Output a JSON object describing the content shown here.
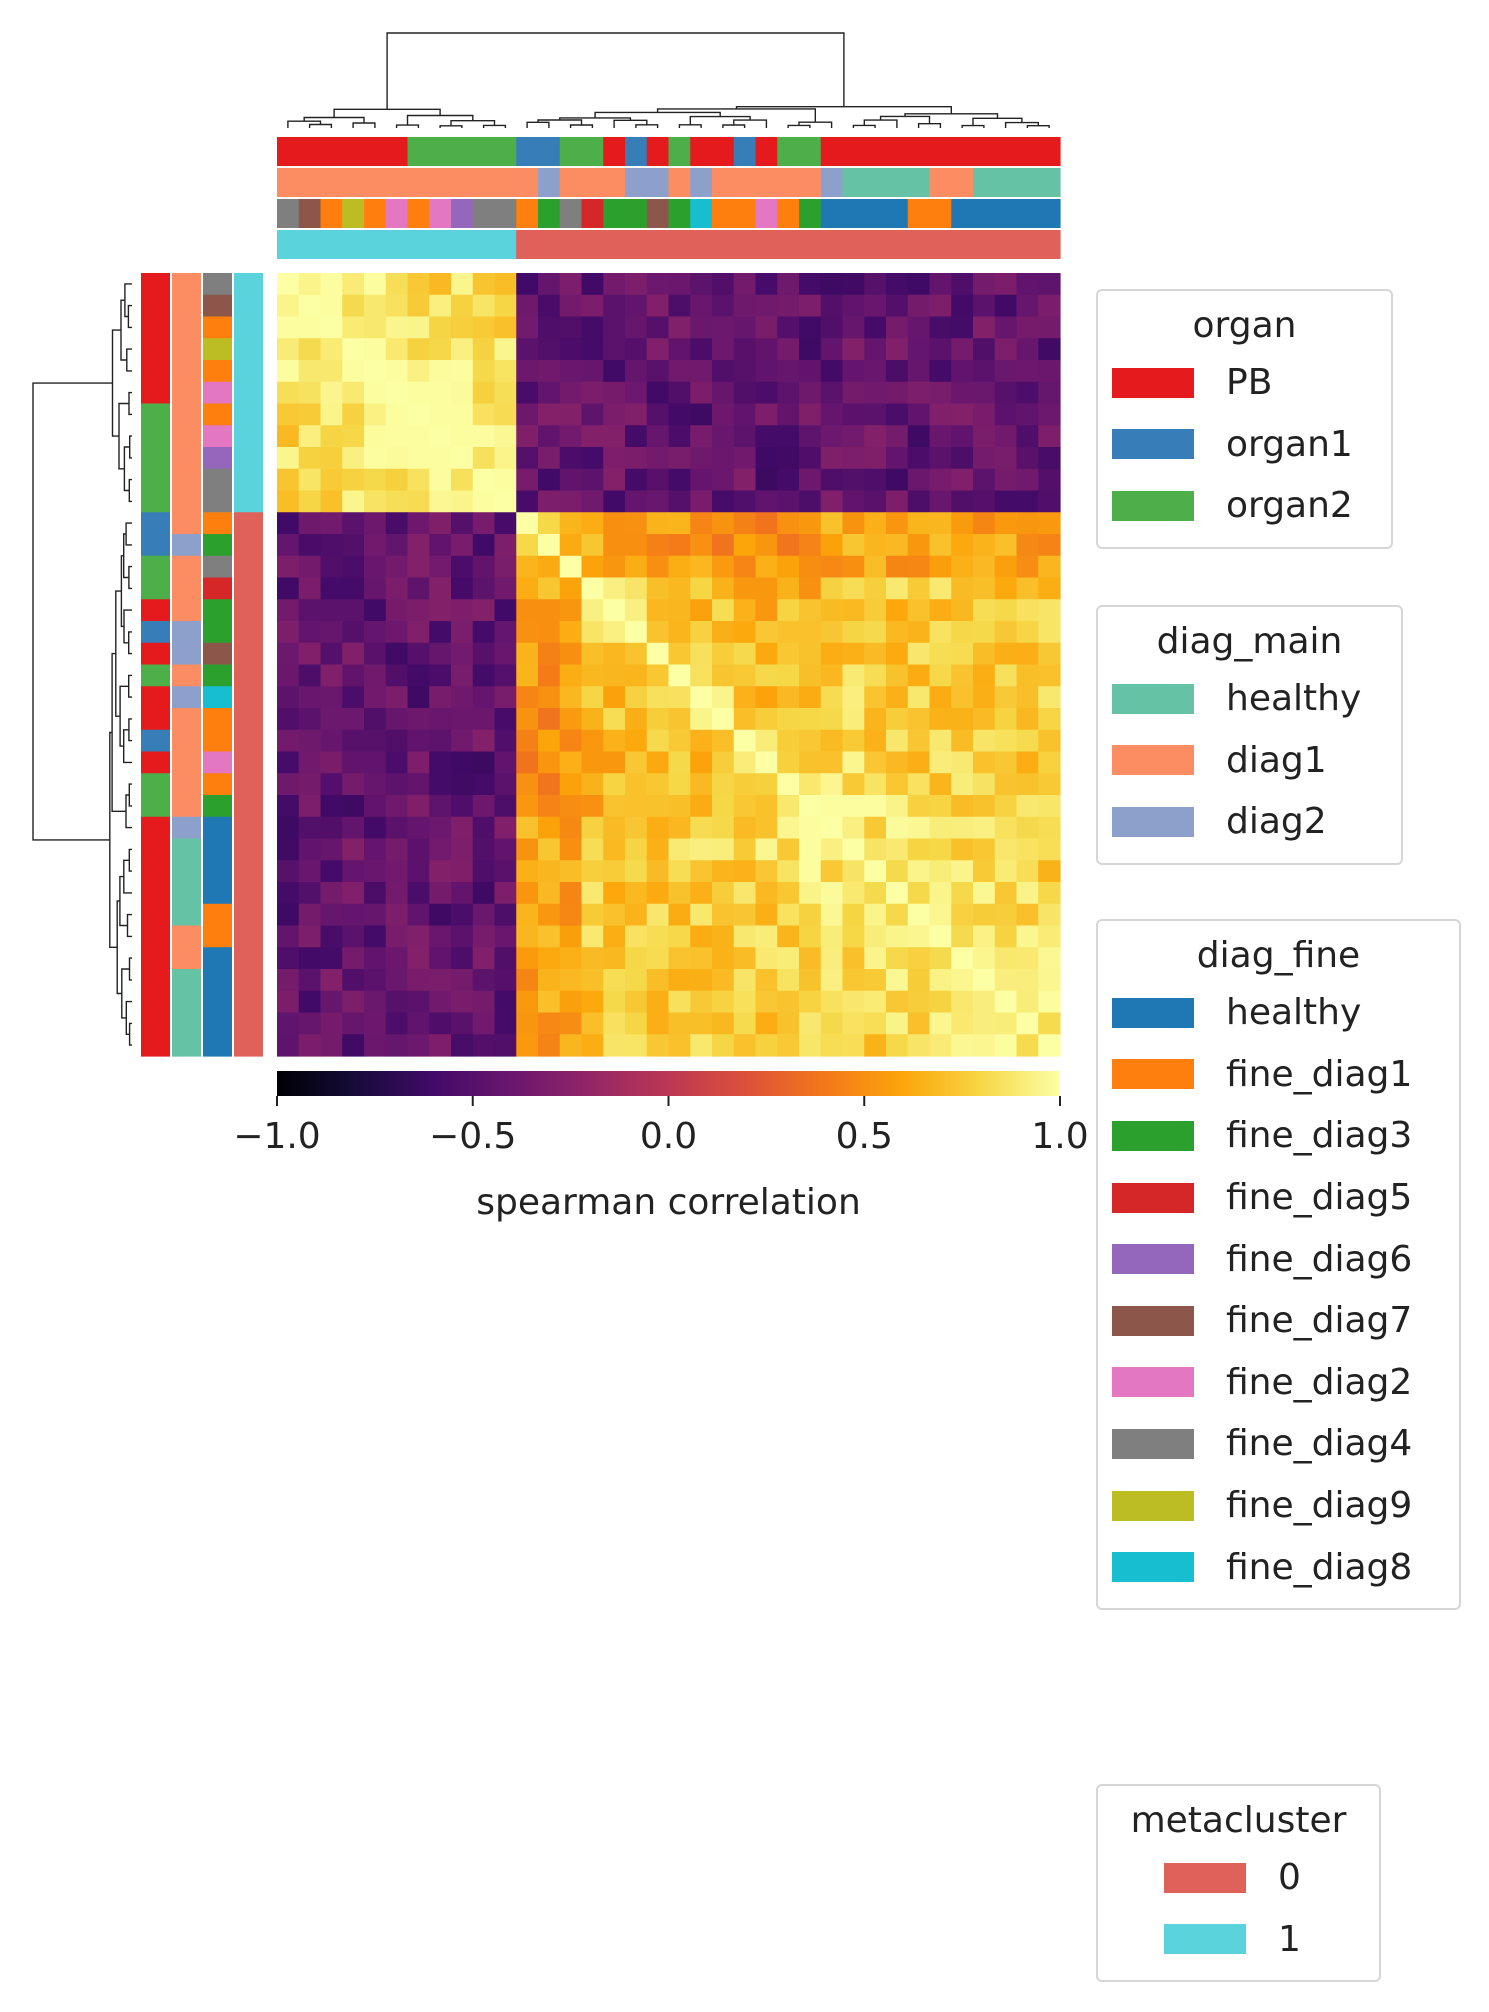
{
  "chart_data": {
    "type": "heatmap",
    "title": "",
    "colorbar": {
      "label": "spearman correlation",
      "vmin": -1.0,
      "vmax": 1.0,
      "ticks": [
        -1.0,
        -0.5,
        0.0,
        0.5,
        1.0
      ],
      "tick_labels": [
        "−1.0",
        "−0.5",
        "0.0",
        "0.5",
        "1.0"
      ],
      "colormap": "inferno"
    },
    "n_samples": 36,
    "correlation_matrix_structure": {
      "block_boundaries": [
        0,
        11,
        36
      ],
      "within_block_mean": [
        0.78,
        0.62
      ],
      "between_block_mean": -0.45
    },
    "row_annotations": {
      "organ": [
        "PB",
        "PB",
        "PB",
        "PB",
        "PB",
        "PB",
        "organ2",
        "organ2",
        "organ2",
        "organ2",
        "organ2",
        "organ1",
        "organ1",
        "organ2",
        "organ2",
        "PB",
        "organ1",
        "PB",
        "organ2",
        "PB",
        "PB",
        "organ1",
        "PB",
        "organ2",
        "organ2",
        "PB",
        "PB",
        "PB",
        "PB",
        "PB",
        "PB",
        "PB",
        "PB",
        "PB",
        "PB",
        "PB"
      ],
      "diag_main": [
        "diag1",
        "diag1",
        "diag1",
        "diag1",
        "diag1",
        "diag1",
        "diag1",
        "diag1",
        "diag1",
        "diag1",
        "diag1",
        "diag1",
        "diag2",
        "diag1",
        "diag1",
        "diag1",
        "diag2",
        "diag2",
        "diag1",
        "diag2",
        "diag1",
        "diag1",
        "diag1",
        "diag1",
        "diag1",
        "diag2",
        "healthy",
        "healthy",
        "healthy",
        "healthy",
        "diag1",
        "diag1",
        "healthy",
        "healthy",
        "healthy",
        "healthy"
      ],
      "diag_fine": [
        "fine_diag4",
        "fine_diag7",
        "fine_diag1",
        "fine_diag9",
        "fine_diag1",
        "fine_diag2",
        "fine_diag1",
        "fine_diag2",
        "fine_diag6",
        "fine_diag4",
        "fine_diag4",
        "fine_diag1",
        "fine_diag3",
        "fine_diag4",
        "fine_diag5",
        "fine_diag3",
        "fine_diag3",
        "fine_diag7",
        "fine_diag3",
        "fine_diag8",
        "fine_diag1",
        "fine_diag1",
        "fine_diag2",
        "fine_diag1",
        "fine_diag3",
        "healthy",
        "healthy",
        "healthy",
        "healthy",
        "fine_diag1",
        "fine_diag1",
        "healthy",
        "healthy",
        "healthy",
        "healthy",
        "healthy"
      ],
      "metacluster": [
        "1",
        "1",
        "1",
        "1",
        "1",
        "1",
        "1",
        "1",
        "1",
        "1",
        "1",
        "0",
        "0",
        "0",
        "0",
        "0",
        "0",
        "0",
        "0",
        "0",
        "0",
        "0",
        "0",
        "0",
        "0",
        "0",
        "0",
        "0",
        "0",
        "0",
        "0",
        "0",
        "0",
        "0",
        "0",
        "0"
      ]
    },
    "legends": [
      {
        "title": "organ",
        "entries": [
          {
            "label": "PB",
            "color": "#e41a1c"
          },
          {
            "label": "organ1",
            "color": "#377eb8"
          },
          {
            "label": "organ2",
            "color": "#4daf4a"
          }
        ]
      },
      {
        "title": "diag_main",
        "entries": [
          {
            "label": "healthy",
            "color": "#66c2a5"
          },
          {
            "label": "diag1",
            "color": "#fc8d62"
          },
          {
            "label": "diag2",
            "color": "#8da0cb"
          }
        ]
      },
      {
        "title": "diag_fine",
        "entries": [
          {
            "label": "healthy",
            "color": "#1f77b4"
          },
          {
            "label": "fine_diag1",
            "color": "#ff7f0e"
          },
          {
            "label": "fine_diag3",
            "color": "#2ca02c"
          },
          {
            "label": "fine_diag5",
            "color": "#d62728"
          },
          {
            "label": "fine_diag6",
            "color": "#9467bd"
          },
          {
            "label": "fine_diag7",
            "color": "#8c564b"
          },
          {
            "label": "fine_diag2",
            "color": "#e377c2"
          },
          {
            "label": "fine_diag4",
            "color": "#7f7f7f"
          },
          {
            "label": "fine_diag9",
            "color": "#bcbd22"
          },
          {
            "label": "fine_diag8",
            "color": "#17becf"
          }
        ]
      },
      {
        "title": "metacluster",
        "entries": [
          {
            "label": "0",
            "color": "#e0615a"
          },
          {
            "label": "1",
            "color": "#5bd3dc"
          }
        ]
      }
    ]
  }
}
